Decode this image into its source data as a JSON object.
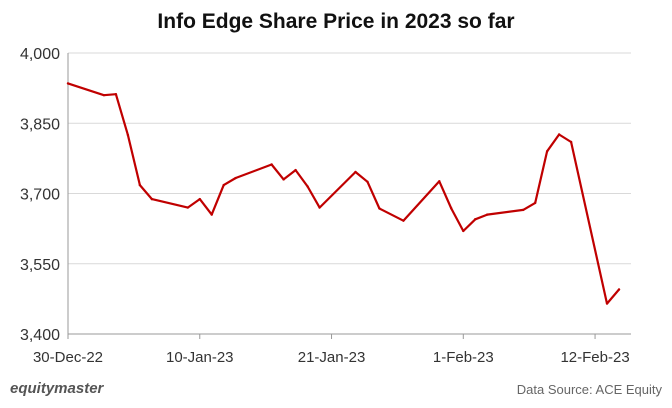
{
  "chart_data": {
    "type": "line",
    "title": "Info Edge Share Price in 2023 so far",
    "xlabel": "",
    "ylabel": "",
    "x_domain": [
      "2022-12-30",
      "2023-02-15"
    ],
    "ylim": [
      3400,
      4000
    ],
    "yticks": [
      "3,400",
      "3,550",
      "3,700",
      "3,850",
      "4,000"
    ],
    "ytick_values": [
      3400,
      3550,
      3700,
      3850,
      4000
    ],
    "xticks": [
      "30-Dec-22",
      "10-Jan-23",
      "21-Jan-23",
      "1-Feb-23",
      "12-Feb-23"
    ],
    "xtick_dates": [
      "2022-12-30",
      "2023-01-10",
      "2023-01-21",
      "2023-02-01",
      "2023-02-12"
    ],
    "grid": true,
    "line_color": "#c00000",
    "series": [
      {
        "points": [
          {
            "x": "2022-12-30",
            "y": 3935
          },
          {
            "x": "2023-01-02",
            "y": 3910
          },
          {
            "x": "2023-01-03",
            "y": 3912
          },
          {
            "x": "2023-01-04",
            "y": 3825
          },
          {
            "x": "2023-01-05",
            "y": 3718
          },
          {
            "x": "2023-01-06",
            "y": 3688
          },
          {
            "x": "2023-01-09",
            "y": 3670
          },
          {
            "x": "2023-01-10",
            "y": 3688
          },
          {
            "x": "2023-01-11",
            "y": 3655
          },
          {
            "x": "2023-01-12",
            "y": 3718
          },
          {
            "x": "2023-01-13",
            "y": 3733
          },
          {
            "x": "2023-01-16",
            "y": 3762
          },
          {
            "x": "2023-01-17",
            "y": 3730
          },
          {
            "x": "2023-01-18",
            "y": 3750
          },
          {
            "x": "2023-01-19",
            "y": 3715
          },
          {
            "x": "2023-01-20",
            "y": 3670
          },
          {
            "x": "2023-01-23",
            "y": 3746
          },
          {
            "x": "2023-01-24",
            "y": 3725
          },
          {
            "x": "2023-01-25",
            "y": 3668
          },
          {
            "x": "2023-01-27",
            "y": 3642
          },
          {
            "x": "2023-01-30",
            "y": 3726
          },
          {
            "x": "2023-01-31",
            "y": 3668
          },
          {
            "x": "2023-02-01",
            "y": 3620
          },
          {
            "x": "2023-02-02",
            "y": 3645
          },
          {
            "x": "2023-02-03",
            "y": 3655
          },
          {
            "x": "2023-02-06",
            "y": 3665
          },
          {
            "x": "2023-02-07",
            "y": 3680
          },
          {
            "x": "2023-02-08",
            "y": 3790
          },
          {
            "x": "2023-02-09",
            "y": 3826
          },
          {
            "x": "2023-02-10",
            "y": 3810
          },
          {
            "x": "2023-02-13",
            "y": 3465
          },
          {
            "x": "2023-02-14",
            "y": 3495
          }
        ]
      }
    ]
  },
  "footer": {
    "brand": "equitymaster",
    "source": "Data Source: ACE Equity"
  }
}
